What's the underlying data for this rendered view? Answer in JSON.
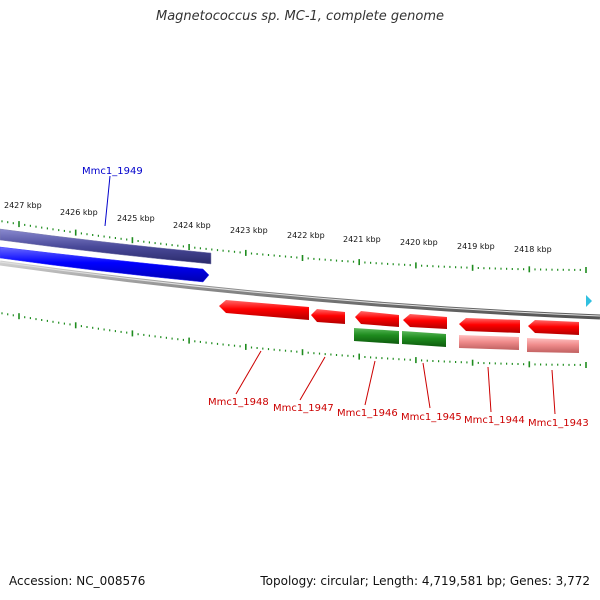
{
  "title": "Magnetococcus sp. MC-1, complete genome",
  "footer": {
    "accession": "Accession: NC_008576",
    "summary": "Topology: circular; Length: 4,719,581 bp; Genes: 3,772"
  },
  "colors": {
    "minus_strand_dark": "#4a4a9a",
    "minus_strand_blue": "#0000ff",
    "plus_red": "#ff0000",
    "plus_green": "#1e8c1e",
    "plus_pink": "#f08c8c",
    "tick_green": "#1e8c1e",
    "genome_line": "#888888",
    "label_red": "#cc0000",
    "label_blue": "#0000cc"
  },
  "scale_labels": [
    "2427 kbp",
    "2426 kbp",
    "2425 kbp",
    "2424 kbp",
    "2423 kbp",
    "2422 kbp",
    "2421 kbp",
    "2420 kbp",
    "2419 kbp",
    "2418 kbp"
  ],
  "genes": [
    {
      "label": "Mmc1_1949",
      "strand": "-"
    },
    {
      "label": "Mmc1_1948",
      "strand": "+"
    },
    {
      "label": "Mmc1_1947",
      "strand": "+"
    },
    {
      "label": "Mmc1_1946",
      "strand": "+"
    },
    {
      "label": "Mmc1_1945",
      "strand": "+"
    },
    {
      "label": "Mmc1_1944",
      "strand": "+"
    },
    {
      "label": "Mmc1_1943",
      "strand": "+"
    }
  ]
}
